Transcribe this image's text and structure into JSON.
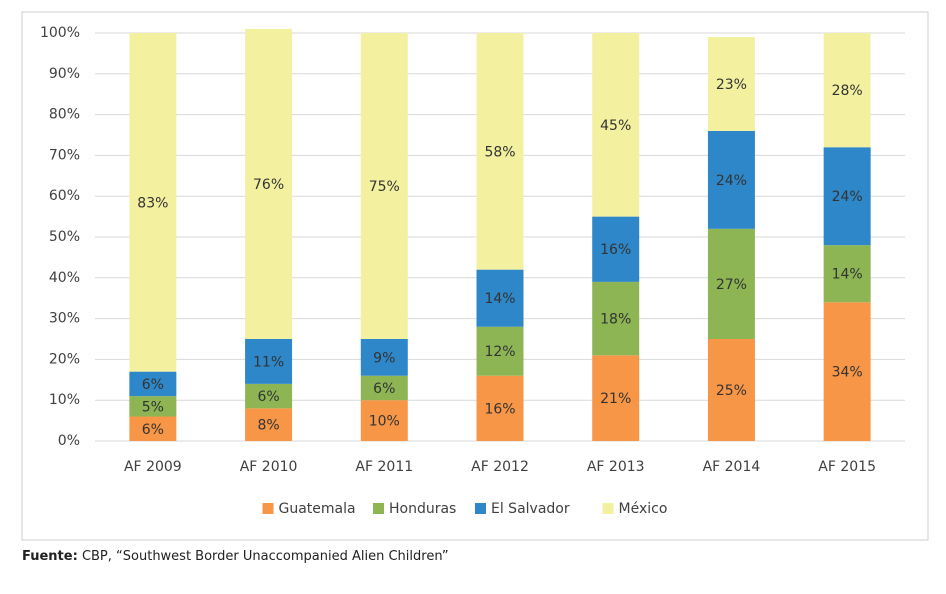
{
  "chart_data": {
    "type": "stacked_bar",
    "categories": [
      "AF 2009",
      "AF 2010",
      "AF 2011",
      "AF 2012",
      "AF 2013",
      "AF 2014",
      "AF 2015"
    ],
    "series": [
      {
        "name": "Guatemala",
        "color": "#f79646",
        "values": [
          6,
          8,
          10,
          16,
          21,
          25,
          34
        ],
        "value_labels": [
          "6%",
          "8%",
          "10%",
          "16%",
          "21%",
          "25%",
          "34%"
        ]
      },
      {
        "name": "Honduras",
        "color": "#8db554",
        "values": [
          5,
          6,
          6,
          12,
          18,
          27,
          14
        ],
        "value_labels": [
          "5%",
          "6%",
          "6%",
          "12%",
          "18%",
          "27%",
          "14%"
        ]
      },
      {
        "name": "El Salvador",
        "color": "#2e87c8",
        "values": [
          6,
          11,
          9,
          14,
          16,
          24,
          24
        ],
        "value_labels": [
          "6%",
          "11%",
          "9%",
          "14%",
          "16%",
          "24%",
          "24%"
        ]
      },
      {
        "name": "México",
        "color": "#f3f1a0",
        "values": [
          83,
          76,
          75,
          58,
          45,
          23,
          28
        ],
        "value_labels": [
          "83%",
          "76%",
          "75%",
          "58%",
          "45%",
          "23%",
          "28%"
        ]
      }
    ],
    "ylim": [
      0,
      100
    ],
    "yticks": [
      {
        "value": 0,
        "label": "0%"
      },
      {
        "value": 10,
        "label": "10%"
      },
      {
        "value": 20,
        "label": "20%"
      },
      {
        "value": 30,
        "label": "30%"
      },
      {
        "value": 40,
        "label": "40%"
      },
      {
        "value": 50,
        "label": "50%"
      },
      {
        "value": 60,
        "label": "60%"
      },
      {
        "value": 70,
        "label": "70%"
      },
      {
        "value": 80,
        "label": "80%"
      },
      {
        "value": 90,
        "label": "90%"
      },
      {
        "value": 100,
        "label": "100%"
      }
    ],
    "grid": true,
    "legend": "bottom",
    "source_label": "Fuente:",
    "source": "CBP, “Southwest Border Unaccompanied Alien Children”"
  }
}
